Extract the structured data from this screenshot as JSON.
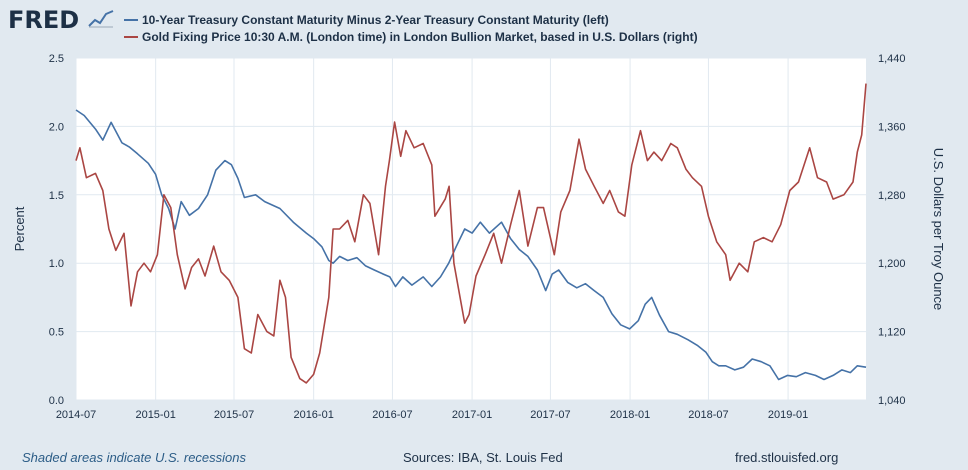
{
  "header": {
    "logo_text": "FRED",
    "logo_icon": "line-chart-icon"
  },
  "legend": [
    {
      "label": "10-Year Treasury Constant Maturity Minus 2-Year Treasury Constant Maturity (left)",
      "color": "#4572a7"
    },
    {
      "label": "Gold Fixing Price 10:30 A.M. (London time) in London Bullion Market, based in U.S. Dollars (right)",
      "color": "#aa4643"
    }
  ],
  "footer": {
    "recession_note": "Shaded areas indicate U.S. recessions",
    "sources": "Sources: IBA, St. Louis Fed",
    "site": "fred.stlouisfed.org"
  },
  "chart_data": {
    "type": "line",
    "x_tick_labels": [
      "2014-07",
      "2015-01",
      "2015-07",
      "2016-01",
      "2016-07",
      "2017-01",
      "2017-07",
      "2018-01",
      "2018-07",
      "2019-01"
    ],
    "x_range": [
      "2014-07-01",
      "2019-06-30"
    ],
    "y_left": {
      "label": "Percent",
      "range": [
        0,
        2.5
      ],
      "ticks": [
        "0.0",
        "0.5",
        "1.0",
        "1.5",
        "2.0",
        "2.5"
      ]
    },
    "y_right": {
      "label": "U.S. Dollars per Troy Ounce",
      "range": [
        1040,
        1440
      ],
      "ticks": [
        "1,040",
        "1,120",
        "1,200",
        "1,280",
        "1,360",
        "1,440"
      ]
    },
    "grid": true,
    "series": [
      {
        "name": "10-Year Treasury Constant Maturity Minus 2-Year Treasury Constant Maturity (left)",
        "axis": "left",
        "color": "#4572a7",
        "points": [
          [
            "2014-07-01",
            2.12
          ],
          [
            "2014-07-20",
            2.08
          ],
          [
            "2014-08-15",
            1.98
          ],
          [
            "2014-09-01",
            1.9
          ],
          [
            "2014-09-20",
            2.03
          ],
          [
            "2014-10-15",
            1.88
          ],
          [
            "2014-11-01",
            1.85
          ],
          [
            "2014-11-20",
            1.8
          ],
          [
            "2014-12-15",
            1.73
          ],
          [
            "2015-01-01",
            1.65
          ],
          [
            "2015-01-15",
            1.5
          ],
          [
            "2015-01-31",
            1.4
          ],
          [
            "2015-02-15",
            1.25
          ],
          [
            "2015-03-01",
            1.45
          ],
          [
            "2015-03-20",
            1.35
          ],
          [
            "2015-04-10",
            1.4
          ],
          [
            "2015-05-01",
            1.5
          ],
          [
            "2015-05-20",
            1.68
          ],
          [
            "2015-06-10",
            1.75
          ],
          [
            "2015-06-25",
            1.72
          ],
          [
            "2015-07-10",
            1.62
          ],
          [
            "2015-07-25",
            1.48
          ],
          [
            "2015-08-20",
            1.5
          ],
          [
            "2015-09-10",
            1.45
          ],
          [
            "2015-10-15",
            1.4
          ],
          [
            "2015-11-15",
            1.3
          ],
          [
            "2015-12-15",
            1.22
          ],
          [
            "2016-01-01",
            1.18
          ],
          [
            "2016-01-20",
            1.12
          ],
          [
            "2016-02-05",
            1.02
          ],
          [
            "2016-02-15",
            1.0
          ],
          [
            "2016-03-01",
            1.05
          ],
          [
            "2016-03-20",
            1.02
          ],
          [
            "2016-04-10",
            1.04
          ],
          [
            "2016-04-30",
            0.98
          ],
          [
            "2016-05-20",
            0.95
          ],
          [
            "2016-06-10",
            0.92
          ],
          [
            "2016-06-25",
            0.9
          ],
          [
            "2016-07-08",
            0.83
          ],
          [
            "2016-07-25",
            0.9
          ],
          [
            "2016-08-15",
            0.84
          ],
          [
            "2016-09-10",
            0.9
          ],
          [
            "2016-09-30",
            0.83
          ],
          [
            "2016-10-20",
            0.9
          ],
          [
            "2016-11-08",
            1.0
          ],
          [
            "2016-11-25",
            1.12
          ],
          [
            "2016-12-15",
            1.25
          ],
          [
            "2017-01-01",
            1.22
          ],
          [
            "2017-01-20",
            1.3
          ],
          [
            "2017-02-10",
            1.22
          ],
          [
            "2017-03-10",
            1.3
          ],
          [
            "2017-03-31",
            1.18
          ],
          [
            "2017-04-20",
            1.1
          ],
          [
            "2017-05-10",
            1.05
          ],
          [
            "2017-06-01",
            0.95
          ],
          [
            "2017-06-20",
            0.8
          ],
          [
            "2017-07-05",
            0.92
          ],
          [
            "2017-07-20",
            0.95
          ],
          [
            "2017-08-10",
            0.86
          ],
          [
            "2017-08-31",
            0.82
          ],
          [
            "2017-09-20",
            0.85
          ],
          [
            "2017-10-10",
            0.8
          ],
          [
            "2017-10-31",
            0.75
          ],
          [
            "2017-11-20",
            0.63
          ],
          [
            "2017-12-10",
            0.55
          ],
          [
            "2017-12-31",
            0.52
          ],
          [
            "2018-01-20",
            0.58
          ],
          [
            "2018-02-05",
            0.7
          ],
          [
            "2018-02-20",
            0.75
          ],
          [
            "2018-03-10",
            0.62
          ],
          [
            "2018-03-31",
            0.5
          ],
          [
            "2018-04-20",
            0.48
          ],
          [
            "2018-05-15",
            0.44
          ],
          [
            "2018-06-05",
            0.4
          ],
          [
            "2018-06-25",
            0.35
          ],
          [
            "2018-07-10",
            0.28
          ],
          [
            "2018-07-25",
            0.25
          ],
          [
            "2018-08-10",
            0.25
          ],
          [
            "2018-08-31",
            0.22
          ],
          [
            "2018-09-20",
            0.24
          ],
          [
            "2018-10-10",
            0.3
          ],
          [
            "2018-10-31",
            0.28
          ],
          [
            "2018-11-20",
            0.25
          ],
          [
            "2018-12-10",
            0.15
          ],
          [
            "2018-12-31",
            0.18
          ],
          [
            "2019-01-20",
            0.17
          ],
          [
            "2019-02-10",
            0.2
          ],
          [
            "2019-03-05",
            0.18
          ],
          [
            "2019-03-25",
            0.15
          ],
          [
            "2019-04-15",
            0.18
          ],
          [
            "2019-05-05",
            0.22
          ],
          [
            "2019-05-25",
            0.2
          ],
          [
            "2019-06-10",
            0.25
          ],
          [
            "2019-06-30",
            0.24
          ]
        ]
      },
      {
        "name": "Gold Fixing Price 10:30 A.M. (London time) in London Bullion Market, based in U.S. Dollars (right)",
        "axis": "right",
        "color": "#aa4643",
        "points": [
          [
            "2014-07-01",
            1320
          ],
          [
            "2014-07-10",
            1335
          ],
          [
            "2014-07-25",
            1300
          ],
          [
            "2014-08-15",
            1305
          ],
          [
            "2014-09-01",
            1285
          ],
          [
            "2014-09-15",
            1240
          ],
          [
            "2014-10-01",
            1215
          ],
          [
            "2014-10-20",
            1235
          ],
          [
            "2014-11-05",
            1150
          ],
          [
            "2014-11-20",
            1190
          ],
          [
            "2014-12-05",
            1200
          ],
          [
            "2014-12-20",
            1190
          ],
          [
            "2015-01-05",
            1210
          ],
          [
            "2015-01-20",
            1280
          ],
          [
            "2015-02-05",
            1265
          ],
          [
            "2015-02-20",
            1210
          ],
          [
            "2015-03-10",
            1170
          ],
          [
            "2015-03-25",
            1195
          ],
          [
            "2015-04-10",
            1205
          ],
          [
            "2015-04-25",
            1185
          ],
          [
            "2015-05-15",
            1220
          ],
          [
            "2015-06-01",
            1190
          ],
          [
            "2015-06-20",
            1180
          ],
          [
            "2015-07-10",
            1160
          ],
          [
            "2015-07-25",
            1100
          ],
          [
            "2015-08-10",
            1095
          ],
          [
            "2015-08-25",
            1140
          ],
          [
            "2015-09-15",
            1120
          ],
          [
            "2015-10-01",
            1115
          ],
          [
            "2015-10-15",
            1180
          ],
          [
            "2015-10-28",
            1160
          ],
          [
            "2015-11-10",
            1090
          ],
          [
            "2015-11-30",
            1065
          ],
          [
            "2015-12-15",
            1060
          ],
          [
            "2016-01-01",
            1070
          ],
          [
            "2016-01-15",
            1095
          ],
          [
            "2016-02-05",
            1160
          ],
          [
            "2016-02-15",
            1240
          ],
          [
            "2016-03-01",
            1240
          ],
          [
            "2016-03-20",
            1250
          ],
          [
            "2016-04-05",
            1225
          ],
          [
            "2016-04-25",
            1280
          ],
          [
            "2016-05-10",
            1270
          ],
          [
            "2016-05-30",
            1210
          ],
          [
            "2016-06-15",
            1290
          ],
          [
            "2016-06-24",
            1320
          ],
          [
            "2016-07-06",
            1365
          ],
          [
            "2016-07-20",
            1325
          ],
          [
            "2016-08-01",
            1355
          ],
          [
            "2016-08-20",
            1335
          ],
          [
            "2016-09-10",
            1340
          ],
          [
            "2016-09-30",
            1315
          ],
          [
            "2016-10-07",
            1255
          ],
          [
            "2016-10-31",
            1275
          ],
          [
            "2016-11-09",
            1290
          ],
          [
            "2016-11-20",
            1200
          ],
          [
            "2016-12-15",
            1130
          ],
          [
            "2016-12-25",
            1140
          ],
          [
            "2017-01-10",
            1185
          ],
          [
            "2017-01-31",
            1210
          ],
          [
            "2017-02-20",
            1235
          ],
          [
            "2017-03-10",
            1200
          ],
          [
            "2017-03-31",
            1245
          ],
          [
            "2017-04-20",
            1285
          ],
          [
            "2017-05-10",
            1220
          ],
          [
            "2017-06-01",
            1265
          ],
          [
            "2017-06-15",
            1265
          ],
          [
            "2017-07-10",
            1210
          ],
          [
            "2017-07-25",
            1260
          ],
          [
            "2017-08-15",
            1285
          ],
          [
            "2017-09-05",
            1345
          ],
          [
            "2017-09-20",
            1310
          ],
          [
            "2017-10-10",
            1290
          ],
          [
            "2017-10-31",
            1270
          ],
          [
            "2017-11-15",
            1285
          ],
          [
            "2017-12-05",
            1260
          ],
          [
            "2017-12-20",
            1255
          ],
          [
            "2018-01-05",
            1315
          ],
          [
            "2018-01-25",
            1355
          ],
          [
            "2018-02-10",
            1320
          ],
          [
            "2018-02-25",
            1330
          ],
          [
            "2018-03-15",
            1320
          ],
          [
            "2018-04-05",
            1340
          ],
          [
            "2018-04-20",
            1335
          ],
          [
            "2018-05-10",
            1310
          ],
          [
            "2018-05-25",
            1300
          ],
          [
            "2018-06-15",
            1290
          ],
          [
            "2018-07-01",
            1255
          ],
          [
            "2018-07-20",
            1225
          ],
          [
            "2018-08-10",
            1210
          ],
          [
            "2018-08-20",
            1180
          ],
          [
            "2018-09-10",
            1200
          ],
          [
            "2018-09-30",
            1190
          ],
          [
            "2018-10-15",
            1225
          ],
          [
            "2018-11-05",
            1230
          ],
          [
            "2018-11-25",
            1225
          ],
          [
            "2018-12-15",
            1245
          ],
          [
            "2019-01-05",
            1285
          ],
          [
            "2019-01-25",
            1295
          ],
          [
            "2019-02-20",
            1335
          ],
          [
            "2019-03-10",
            1300
          ],
          [
            "2019-03-31",
            1295
          ],
          [
            "2019-04-15",
            1275
          ],
          [
            "2019-05-10",
            1280
          ],
          [
            "2019-05-31",
            1295
          ],
          [
            "2019-06-10",
            1330
          ],
          [
            "2019-06-20",
            1350
          ],
          [
            "2019-06-30",
            1410
          ]
        ]
      }
    ]
  }
}
